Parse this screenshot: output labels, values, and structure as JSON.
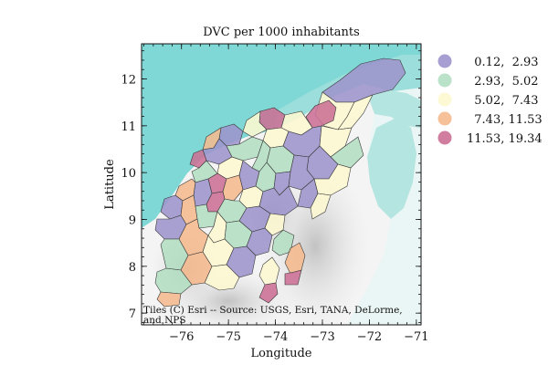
{
  "map": {
    "title": "DVC per 1000 inhabitants",
    "xlabel": "Longitude",
    "ylabel": "Latitude",
    "x_ticks": [
      "−76",
      "−75",
      "−74",
      "−73",
      "−72",
      "−71"
    ],
    "y_ticks": [
      "7",
      "8",
      "9",
      "10",
      "11",
      "12"
    ],
    "xlim": [
      -76.85,
      -70.9
    ],
    "ylim": [
      6.75,
      12.75
    ],
    "attribution": [
      "Tiles (C) Esri -- Source: USGS, Esri, TANA, DeLorme,",
      "and NPS"
    ],
    "basemap_colors": {
      "sea_deep": "#7fd8d6",
      "sea_light": "#b5e5e0",
      "land": "#f2f2f2",
      "relief": "#cfcfcf"
    }
  },
  "legend": {
    "placement": "right",
    "items": [
      {
        "label": "  0.12,  2.93",
        "color": "#9d94cc"
      },
      {
        "label": "  2.93,  5.02",
        "color": "#b3dfc3"
      },
      {
        "label": "  5.02,  7.43",
        "color": "#fdf8d0"
      },
      {
        "label": "  7.43, 11.53",
        "color": "#f5b98e"
      },
      {
        "label": "11.53, 19.34",
        "color": "#cc6f95"
      }
    ]
  }
}
